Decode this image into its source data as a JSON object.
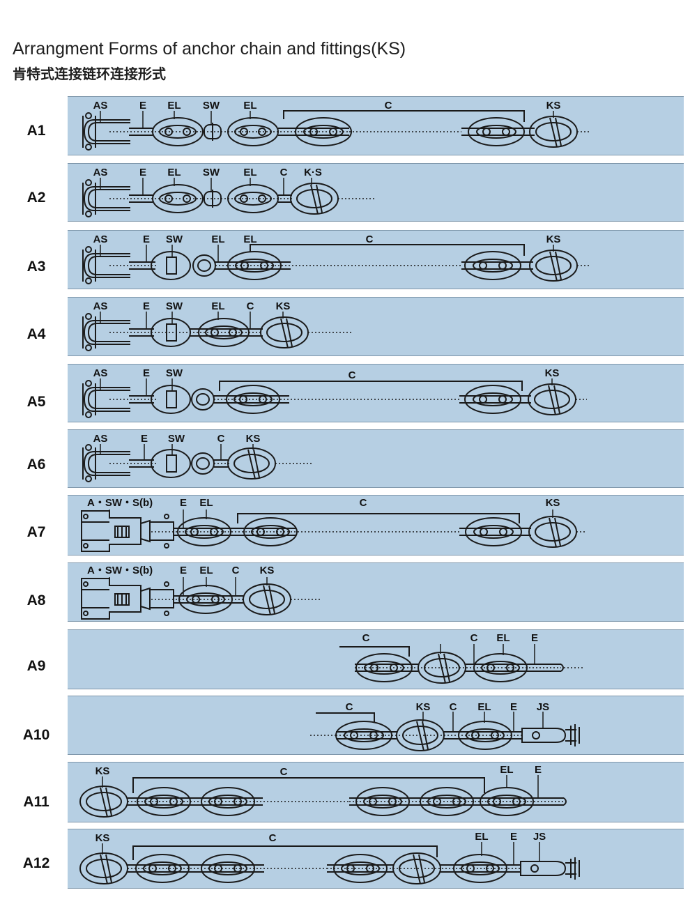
{
  "title": "Arrangment Forms of anchor chain and fittings(KS)",
  "subtitle": "肯特式连接链环连接形式",
  "colors": {
    "panel": "#b6cfe3",
    "line": "#1a1a1a"
  },
  "rows": [
    {
      "id": "A1",
      "labels": {
        "as": "AS",
        "e": "E",
        "el1": "EL",
        "sw": "SW",
        "el2": "EL",
        "c": "C",
        "ks": "KS"
      }
    },
    {
      "id": "A2",
      "labels": {
        "as": "AS",
        "e": "E",
        "el1": "EL",
        "sw": "SW",
        "el2": "EL",
        "c": "C",
        "ks": "K·S"
      }
    },
    {
      "id": "A3",
      "labels": {
        "as": "AS",
        "e": "E",
        "sw": "SW",
        "el1": "EL",
        "el2": "EL",
        "c": "C",
        "ks": "KS"
      }
    },
    {
      "id": "A4",
      "labels": {
        "as": "AS",
        "e": "E",
        "sw": "SW",
        "el": "EL",
        "c": "C",
        "ks": "KS"
      }
    },
    {
      "id": "A5",
      "labels": {
        "as": "AS",
        "e": "E",
        "sw": "SW",
        "c": "C",
        "ks": "KS"
      }
    },
    {
      "id": "A6",
      "labels": {
        "as": "AS",
        "e": "E",
        "sw": "SW",
        "c": "C",
        "ks": "KS"
      }
    },
    {
      "id": "A7",
      "labels": {
        "asws": "A・SW・S(b)",
        "e": "E",
        "el": "EL",
        "c": "C",
        "ks": "KS"
      }
    },
    {
      "id": "A8",
      "labels": {
        "asws": "A・SW・S(b)",
        "e": "E",
        "el": "EL",
        "c": "C",
        "ks": "KS"
      }
    },
    {
      "id": "A9",
      "labels": {
        "c1": "C",
        "c2": "C",
        "el": "EL",
        "e": "E"
      }
    },
    {
      "id": "A10",
      "labels": {
        "c1": "C",
        "ks": "KS",
        "c2": "C",
        "el": "EL",
        "e": "E",
        "js": "JS"
      }
    },
    {
      "id": "A11",
      "labels": {
        "ks": "KS",
        "c": "C",
        "el": "EL",
        "e": "E"
      }
    },
    {
      "id": "A12",
      "labels": {
        "ks": "KS",
        "c": "C",
        "el": "EL",
        "e": "E",
        "js": "JS"
      }
    }
  ]
}
